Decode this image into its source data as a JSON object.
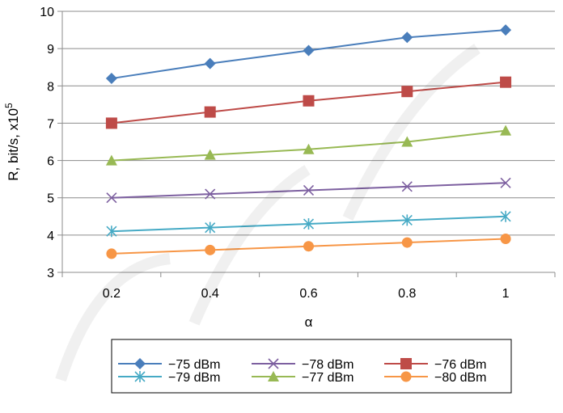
{
  "chart_data": {
    "type": "line",
    "x": [
      0.2,
      0.4,
      0.6,
      0.8,
      1
    ],
    "x_tick_labels": [
      "0.2",
      "0.4",
      "0.6",
      "0.8",
      "1"
    ],
    "xlabel": "α",
    "ylabel": "R, bit/s, x10",
    "ylabel_superscript": "5",
    "ylim": [
      3,
      10
    ],
    "y_ticks": [
      3,
      4,
      5,
      6,
      7,
      8,
      9,
      10
    ],
    "grid": "horizontal",
    "legend_position": "bottom",
    "series": [
      {
        "name": "−75 dBm",
        "values": [
          8.2,
          8.6,
          8.95,
          9.3,
          9.5
        ],
        "color": "#4a7ebb",
        "marker": "diamond"
      },
      {
        "name": "−78 dBm",
        "values": [
          5.0,
          5.1,
          5.2,
          5.3,
          5.4
        ],
        "color": "#7d60a0",
        "marker": "x"
      },
      {
        "name": "−76 dBm",
        "values": [
          7.0,
          7.3,
          7.6,
          7.85,
          8.1
        ],
        "color": "#be4b48",
        "marker": "square"
      },
      {
        "name": "−79 dBm",
        "values": [
          4.1,
          4.2,
          4.3,
          4.4,
          4.5
        ],
        "color": "#46aac5",
        "marker": "star"
      },
      {
        "name": "−77 dBm",
        "values": [
          6.0,
          6.15,
          6.3,
          6.5,
          6.8
        ],
        "color": "#98b954",
        "marker": "triangle"
      },
      {
        "name": "−80 dBm",
        "values": [
          3.5,
          3.6,
          3.7,
          3.8,
          3.9
        ],
        "color": "#f79646",
        "marker": "circle"
      }
    ]
  }
}
